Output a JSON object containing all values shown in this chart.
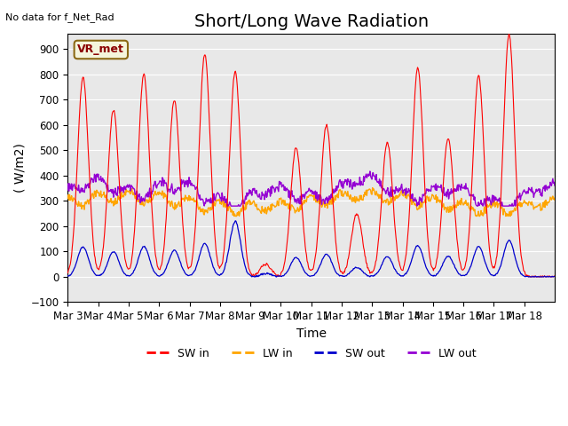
{
  "title": "Short/Long Wave Radiation",
  "top_left_text": "No data for f_Net_Rad",
  "ylabel": "( W/m2)",
  "xlabel": "Time",
  "ylim": [
    -100,
    960
  ],
  "yticks": [
    -100,
    0,
    100,
    200,
    300,
    400,
    500,
    600,
    700,
    800,
    900
  ],
  "legend_box_label": "VR_met",
  "legend_entries": [
    "SW in",
    "LW in",
    "SW out",
    "LW out"
  ],
  "colors": {
    "SW_in": "#ff0000",
    "LW_in": "#ffa500",
    "SW_out": "#0000cd",
    "LW_out": "#9400d3"
  },
  "background_color": "#e8e8e8",
  "n_days": 16,
  "xtick_labels": [
    "Mar 3",
    "Mar 4",
    "Mar 5",
    "Mar 6",
    "Mar 7",
    "Mar 8",
    "Mar 9",
    "Mar 10",
    "Mar 11",
    "Mar 12",
    "Mar 13",
    "Mar 14",
    "Mar 15",
    "Mar 16",
    "Mar 17",
    "Mar 18"
  ],
  "sw_in_peaks": [
    790,
    660,
    800,
    700,
    880,
    810,
    50,
    510,
    600,
    250,
    530,
    825,
    550,
    795,
    960,
    0
  ],
  "title_fontsize": 14,
  "label_fontsize": 10,
  "tick_fontsize": 8.5
}
